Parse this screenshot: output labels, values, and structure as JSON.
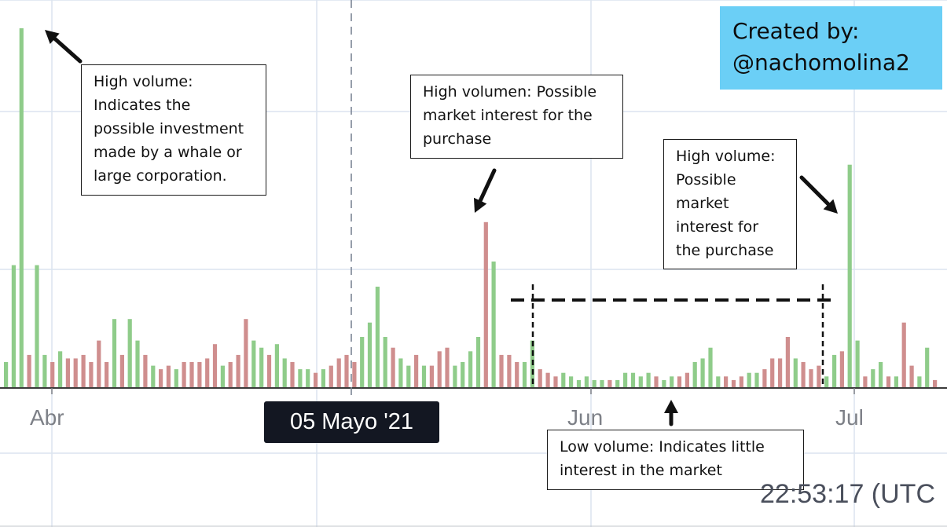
{
  "chart_data": {
    "type": "bar",
    "title": "",
    "xlabel": "",
    "ylabel": "",
    "grid": true,
    "colors": {
      "up": "#8fcc8a",
      "down": "#cf8e8e",
      "grid": "#dbe4ef",
      "credit_bg": "#6bcff6",
      "badge_bg": "#131722"
    },
    "month_ticks": [
      "Abr",
      "Jun",
      "Jul"
    ],
    "crosshair_date": "05 Mayo '21",
    "timestamp": "22:53:17 (UTC",
    "ylim": [
      0,
      100
    ],
    "series": [
      {
        "values": [
          7,
          34,
          100,
          9,
          34,
          9,
          7,
          10,
          8,
          8,
          9,
          7,
          13,
          7,
          19,
          9,
          19,
          13,
          9,
          6,
          5,
          6,
          5,
          7,
          7,
          7,
          8,
          12,
          6,
          7,
          9,
          19,
          13,
          11,
          9,
          12,
          8,
          7,
          5,
          5,
          4,
          5,
          6,
          8,
          9,
          7,
          14,
          18,
          28,
          14,
          11,
          8,
          6,
          9,
          6,
          6,
          10,
          11,
          6,
          7,
          10,
          14,
          46,
          35,
          9,
          9,
          7,
          7,
          13,
          5,
          4,
          3,
          4,
          3,
          2,
          3,
          2,
          2,
          2,
          2,
          4,
          4,
          3,
          4,
          3,
          2,
          3,
          3,
          4,
          7,
          8,
          11,
          3,
          3,
          2,
          3,
          4,
          4,
          5,
          8,
          8,
          14,
          8,
          7,
          5,
          6,
          3,
          9,
          10,
          62,
          13,
          3,
          5,
          7,
          3,
          3,
          18,
          6,
          3,
          11,
          2
        ],
        "direction": [
          "u",
          "u",
          "u",
          "d",
          "u",
          "u",
          "d",
          "u",
          "d",
          "d",
          "d",
          "d",
          "d",
          "d",
          "u",
          "d",
          "u",
          "u",
          "d",
          "u",
          "d",
          "d",
          "u",
          "d",
          "d",
          "d",
          "d",
          "d",
          "u",
          "d",
          "d",
          "d",
          "u",
          "u",
          "d",
          "u",
          "u",
          "d",
          "u",
          "u",
          "d",
          "u",
          "d",
          "d",
          "d",
          "d",
          "u",
          "u",
          "u",
          "u",
          "d",
          "u",
          "u",
          "d",
          "u",
          "d",
          "d",
          "d",
          "u",
          "u",
          "u",
          "u",
          "d",
          "u",
          "d",
          "d",
          "d",
          "u",
          "u",
          "d",
          "d",
          "d",
          "u",
          "u",
          "u",
          "u",
          "u",
          "u",
          "d",
          "u",
          "u",
          "u",
          "u",
          "u",
          "d",
          "u",
          "u",
          "d",
          "d",
          "u",
          "u",
          "u",
          "u",
          "d",
          "d",
          "d",
          "u",
          "u",
          "d",
          "d",
          "d",
          "d",
          "u",
          "d",
          "d",
          "d",
          "u",
          "u",
          "d",
          "u",
          "u",
          "d",
          "u",
          "u",
          "d",
          "u",
          "d",
          "d",
          "u",
          "u",
          "d"
        ]
      }
    ]
  },
  "annotations": {
    "whale": [
      "High volume:",
      "Indicates the",
      "possible investment",
      "made by a whale or",
      "large corporation."
    ],
    "volumen": [
      "High volumen: Possible",
      "market interest for the",
      "purchase"
    ],
    "july": [
      "High volume:",
      "Possible",
      "market",
      "interest for",
      "the purchase"
    ],
    "low": [
      "Low volume: Indicates little",
      "interest in the market"
    ]
  },
  "credit": {
    "line1": "Created by:",
    "line2": "@nachomolina2"
  }
}
